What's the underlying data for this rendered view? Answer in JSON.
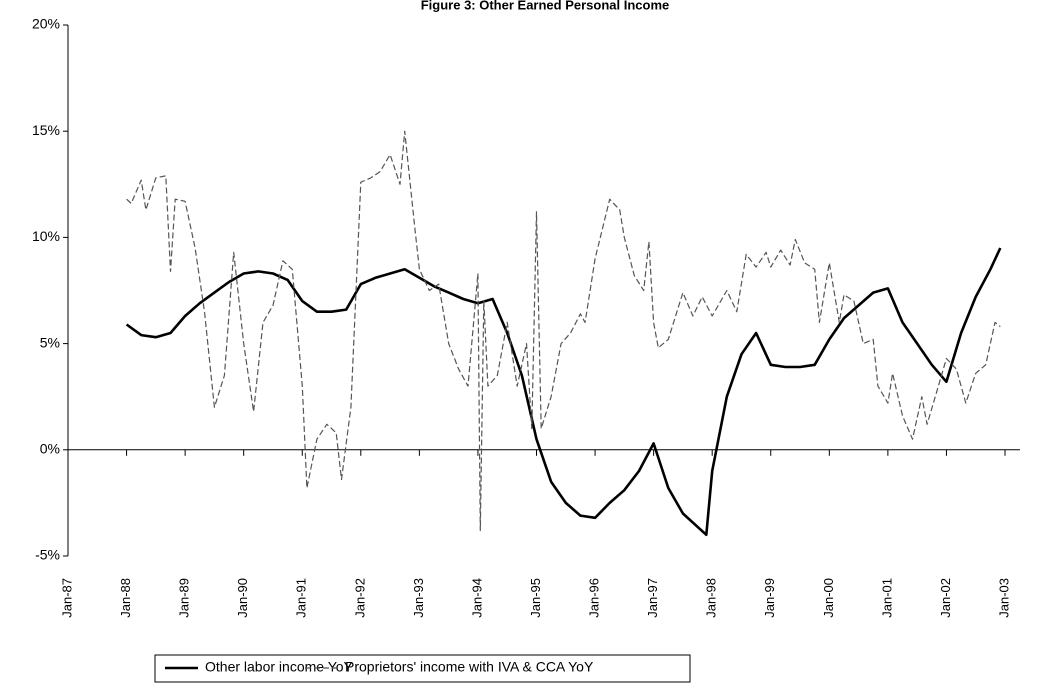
{
  "chart_data": {
    "type": "line",
    "title": "Figure 3: Other Earned Personal Income",
    "xlim": [
      1987,
      2003
    ],
    "xticks": [
      {
        "value": 1987,
        "label": "Jan-87"
      },
      {
        "value": 1988,
        "label": "Jan-88"
      },
      {
        "value": 1989,
        "label": "Jan-89"
      },
      {
        "value": 1990,
        "label": "Jan-90"
      },
      {
        "value": 1991,
        "label": "Jan-91"
      },
      {
        "value": 1992,
        "label": "Jan-92"
      },
      {
        "value": 1993,
        "label": "Jan-93"
      },
      {
        "value": 1994,
        "label": "Jan-94"
      },
      {
        "value": 1995,
        "label": "Jan-95"
      },
      {
        "value": 1996,
        "label": "Jan-96"
      },
      {
        "value": 1997,
        "label": "Jan-97"
      },
      {
        "value": 1998,
        "label": "Jan-98"
      },
      {
        "value": 1999,
        "label": "Jan-99"
      },
      {
        "value": 2000,
        "label": "Jan-00"
      },
      {
        "value": 2001,
        "label": "Jan-01"
      },
      {
        "value": 2002,
        "label": "Jan-02"
      },
      {
        "value": 2003,
        "label": "Jan-03"
      }
    ],
    "ylim": [
      -5,
      20
    ],
    "yticks": [
      {
        "value": -5,
        "label": "-5%"
      },
      {
        "value": 0,
        "label": "0%"
      },
      {
        "value": 5,
        "label": "5%"
      },
      {
        "value": 10,
        "label": "10%"
      },
      {
        "value": 15,
        "label": "15%"
      },
      {
        "value": 20,
        "label": "20%"
      }
    ],
    "grid": false,
    "legend": "bottom",
    "series": [
      {
        "name": "Other labor income YoY",
        "color": "#000000",
        "dash": false,
        "x": [
          1988,
          1988.25,
          1988.5,
          1988.75,
          1989,
          1989.25,
          1989.5,
          1989.75,
          1990,
          1990.25,
          1990.5,
          1990.75,
          1991,
          1991.25,
          1991.5,
          1991.75,
          1992,
          1992.25,
          1992.5,
          1992.75,
          1993,
          1993.25,
          1993.5,
          1993.75,
          1994,
          1994.25,
          1994.5,
          1994.75,
          1995,
          1995.25,
          1995.5,
          1995.75,
          1996,
          1996.25,
          1996.5,
          1996.75,
          1997,
          1997.25,
          1997.5,
          1997.9,
          1998,
          1998.25,
          1998.5,
          1998.75,
          1999,
          1999.25,
          1999.5,
          1999.75,
          2000,
          2000.25,
          2000.5,
          2000.75,
          2001,
          2001.25,
          2001.5,
          2001.75,
          2002,
          2002.25,
          2002.5,
          2002.75,
          2002.92
        ],
        "values": [
          5.9,
          5.4,
          5.3,
          5.5,
          6.3,
          6.9,
          7.4,
          7.9,
          8.3,
          8.4,
          8.3,
          8.0,
          7.0,
          6.5,
          6.5,
          6.6,
          7.8,
          8.1,
          8.3,
          8.5,
          8.1,
          7.7,
          7.4,
          7.1,
          6.9,
          7.1,
          5.5,
          3.5,
          0.5,
          -1.5,
          -2.5,
          -3.1,
          -3.2,
          -2.5,
          -1.9,
          -1.0,
          0.3,
          -1.8,
          -3.0,
          -4.0,
          -1.0,
          2.5,
          4.5,
          5.5,
          4.0,
          3.9,
          3.9,
          4.0,
          5.2,
          6.2,
          6.8,
          7.4,
          7.6,
          6.0,
          5.0,
          4.0,
          3.2,
          5.5,
          7.2,
          8.5,
          9.5
        ]
      },
      {
        "name": "Proprietors' income with IVA & CCA YoY",
        "color": "#555555",
        "dash": true,
        "x": [
          1988,
          1988.08,
          1988.25,
          1988.33,
          1988.5,
          1988.67,
          1988.75,
          1988.83,
          1989,
          1989.17,
          1989.33,
          1989.5,
          1989.67,
          1989.83,
          1990,
          1990.17,
          1990.33,
          1990.5,
          1990.67,
          1990.83,
          1991,
          1991.08,
          1991.25,
          1991.42,
          1991.58,
          1991.67,
          1991.83,
          1992,
          1992.17,
          1992.33,
          1992.5,
          1992.67,
          1992.75,
          1992.92,
          1993,
          1993.17,
          1993.33,
          1993.5,
          1993.67,
          1993.83,
          1994,
          1994.04,
          1994.1,
          1994.17,
          1994.33,
          1994.5,
          1994.67,
          1994.83,
          1994.92,
          1995,
          1995.08,
          1995.25,
          1995.42,
          1995.58,
          1995.75,
          1995.83,
          1996,
          1996.25,
          1996.42,
          1996.5,
          1996.67,
          1996.83,
          1996.92,
          1997,
          1997.08,
          1997.25,
          1997.5,
          1997.67,
          1997.83,
          1998,
          1998.25,
          1998.42,
          1998.58,
          1998.75,
          1998.92,
          1999,
          1999.17,
          1999.33,
          1999.42,
          1999.58,
          1999.75,
          1999.83,
          2000,
          2000.17,
          2000.25,
          2000.42,
          2000.58,
          2000.75,
          2000.83,
          2001,
          2001.08,
          2001.25,
          2001.42,
          2001.58,
          2001.67,
          2001.83,
          2002,
          2002.17,
          2002.33,
          2002.5,
          2002.67,
          2002.83,
          2002.92
        ],
        "values": [
          11.8,
          11.6,
          12.7,
          11.3,
          12.8,
          12.9,
          8.4,
          11.8,
          11.7,
          9.5,
          6.5,
          2.0,
          3.5,
          9.3,
          5.0,
          1.8,
          6.0,
          6.8,
          8.9,
          8.5,
          3.0,
          -1.8,
          0.5,
          1.2,
          0.8,
          -1.4,
          2.0,
          12.6,
          12.8,
          13.1,
          13.9,
          12.5,
          15.0,
          10.5,
          8.5,
          7.5,
          7.8,
          5.0,
          3.8,
          3.0,
          8.3,
          -3.8,
          7.0,
          3.0,
          3.5,
          6.0,
          3.0,
          5.0,
          1.0,
          11.2,
          1.0,
          2.5,
          5.0,
          5.5,
          6.4,
          6.0,
          9.0,
          11.8,
          11.3,
          10.0,
          8.2,
          7.5,
          9.8,
          6.0,
          4.8,
          5.2,
          7.4,
          6.3,
          7.2,
          6.3,
          7.5,
          6.5,
          9.2,
          8.6,
          9.3,
          8.6,
          9.4,
          8.7,
          9.9,
          8.8,
          8.5,
          6.0,
          8.8,
          6.0,
          7.3,
          7.0,
          5.0,
          5.2,
          3.0,
          2.2,
          3.6,
          1.6,
          0.5,
          2.5,
          1.2,
          2.7,
          4.3,
          3.8,
          2.2,
          3.6,
          4.0,
          6.0,
          5.8
        ]
      }
    ]
  }
}
